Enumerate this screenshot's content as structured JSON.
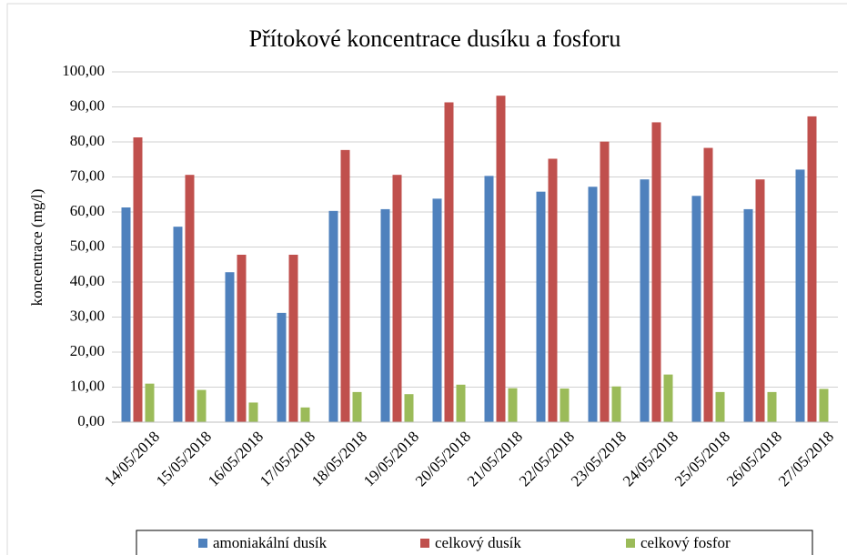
{
  "chart_data": {
    "type": "bar",
    "title": "Přítokové koncentrace dusíku a fosforu",
    "y_label": "koncentrace (mg/l)",
    "categories": [
      "14/05/2018",
      "15/05/2018",
      "16/05/2018",
      "17/05/2018",
      "18/05/2018",
      "19/05/2018",
      "20/05/2018",
      "21/05/2018",
      "22/05/2018",
      "23/05/2018",
      "24/05/2018",
      "25/05/2018",
      "26/05/2018",
      "27/05/2018"
    ],
    "series": [
      {
        "name": "amoniakální dusík",
        "color": "#4f81bd",
        "values": [
          61.3,
          55.8,
          42.8,
          31.2,
          60.3,
          60.8,
          63.8,
          70.3,
          65.8,
          67.2,
          69.3,
          64.6,
          60.8,
          72.1
        ]
      },
      {
        "name": "celkový dusík",
        "color": "#c0504d",
        "values": [
          81.3,
          70.6,
          47.8,
          47.8,
          77.7,
          70.6,
          91.3,
          93.2,
          75.2,
          80.1,
          85.6,
          78.3,
          69.3,
          87.3
        ]
      },
      {
        "name": "celkový fosfor",
        "color": "#9bbb59",
        "values": [
          11.0,
          9.2,
          5.6,
          4.2,
          8.6,
          8.0,
          10.7,
          9.7,
          9.6,
          10.2,
          13.6,
          8.6,
          8.6,
          9.5
        ]
      }
    ],
    "ylim": [
      0,
      100
    ],
    "yticks": [
      {
        "value": 0,
        "label": "0,00"
      },
      {
        "value": 10,
        "label": "10,00"
      },
      {
        "value": 20,
        "label": "20,00"
      },
      {
        "value": 30,
        "label": "30,00"
      },
      {
        "value": 40,
        "label": "40,00"
      },
      {
        "value": 50,
        "label": "50,00"
      },
      {
        "value": 60,
        "label": "60,00"
      },
      {
        "value": 70,
        "label": "70,00"
      },
      {
        "value": 80,
        "label": "80,00"
      },
      {
        "value": 90,
        "label": "90,00"
      },
      {
        "value": 100,
        "label": "100,00"
      }
    ],
    "grid": true,
    "legend": "bottom"
  }
}
